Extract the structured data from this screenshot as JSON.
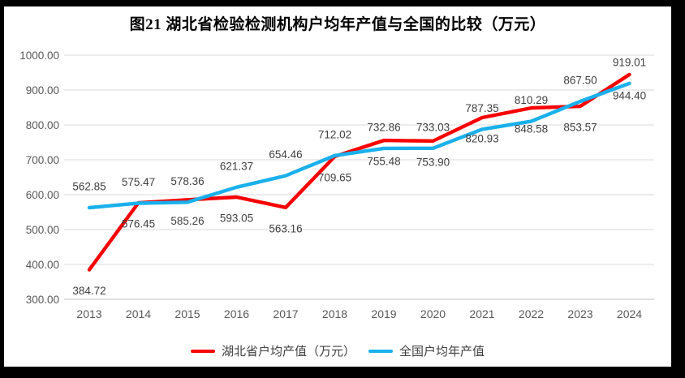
{
  "chart_data": {
    "type": "line",
    "title": "图21 湖北省检验检测机构户均年产值与全国的比较（万元）",
    "categories": [
      "2013",
      "2014",
      "2015",
      "2016",
      "2017",
      "2018",
      "2019",
      "2020",
      "2021",
      "2022",
      "2023",
      "2024"
    ],
    "series": [
      {
        "name": "湖北省户均产值（万元）",
        "color": "#f70000",
        "label_position": "below",
        "values": [
          384.72,
          576.45,
          585.26,
          593.05,
          563.16,
          709.65,
          755.48,
          753.9,
          820.93,
          848.58,
          853.57,
          944.4
        ]
      },
      {
        "name": "全国户均年产值",
        "color": "#1ab0ec",
        "label_position": "above",
        "values": [
          562.85,
          575.47,
          578.36,
          621.37,
          654.46,
          712.02,
          732.86,
          733.03,
          787.35,
          810.29,
          867.5,
          919.01
        ]
      }
    ],
    "ylim": [
      300,
      1000
    ],
    "ytick_step": 100,
    "ytick_decimals": 2,
    "grid": true,
    "legend_position": "bottom",
    "colors": {
      "gridline": "#d9d9d9",
      "axis_line": "#bfbfbf",
      "axis_text": "#595959",
      "data_label_text": "#404040",
      "title_text": "#000000",
      "frame": "#000000"
    }
  }
}
